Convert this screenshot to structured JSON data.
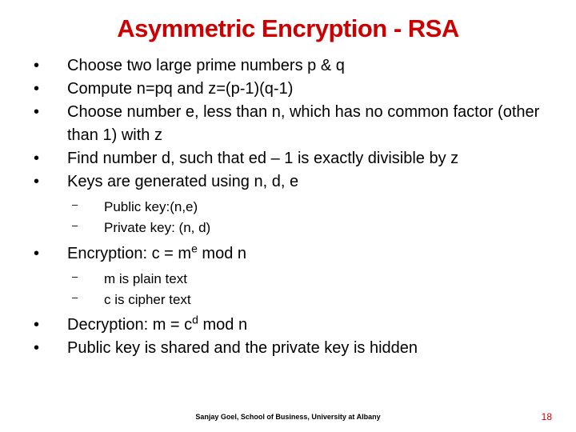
{
  "title": "Asymmetric Encryption - RSA",
  "title_color": "#cc0000",
  "body_color": "#000000",
  "background_color": "#ffffff",
  "title_fontsize": 31,
  "body_fontsize": 20,
  "sublist_fontsize": 17,
  "bullets": {
    "b1": "Choose two large prime numbers p & q",
    "b2": "Compute n=pq and z=(p-1)(q-1)",
    "b3": "Choose number e, less than n, which has no common factor (other than 1) with z",
    "b4": "Find number d, such that ed – 1 is exactly divisible by z",
    "b5": "Keys are generated using n, d, e",
    "b5_sub1": "Public key:(n,e)",
    "b5_sub2": "Private key: (n, d)",
    "b6_pre": "Encryption: c = m",
    "b6_sup": "e",
    "b6_post": " mod n",
    "b6_sub1": "m is plain text",
    "b6_sub2": "c is cipher text",
    "b7_pre": "Decryption: m = c",
    "b7_sup": "d",
    "b7_post": " mod n",
    "b8": "Public key is shared and the private key is hidden"
  },
  "footer": "Sanjay Goel, School of Business, University at Albany",
  "page_number": "18",
  "pagenum_color": "#cc0000"
}
